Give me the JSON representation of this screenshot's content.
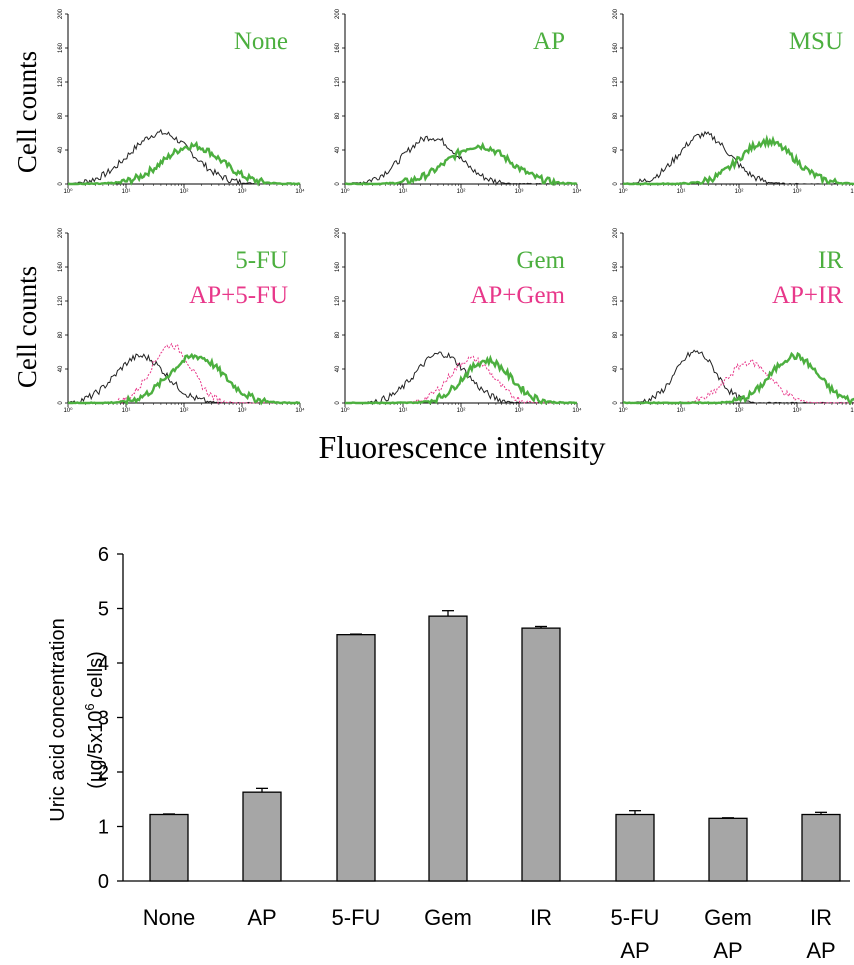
{
  "colors": {
    "control": "#222222",
    "treatment": "#4caf3f",
    "combo": "#e8388a",
    "bar_fill": "#a6a6a6",
    "bar_stroke": "#000000"
  },
  "histogram_panel": {
    "ylabel": "Cell counts",
    "xlabel": "Fluorescence intensity",
    "y_ticks": [
      "0",
      "40",
      "80",
      "120",
      "160",
      "200"
    ],
    "x_ticks": [
      "10⁰",
      "10¹",
      "10²",
      "10³",
      "10⁴"
    ],
    "x_scale": "log"
  },
  "chart_data": [
    {
      "type": "line",
      "x_scale": "log",
      "xlim": [
        1,
        10000
      ],
      "ylim": [
        0,
        200
      ],
      "panels": [
        {
          "label": "None",
          "combo_label": "",
          "series": [
            {
              "role": "control",
              "peak": 60,
              "center": 40,
              "spread": 0.85
            },
            {
              "role": "treatment",
              "peak": 45,
              "center": 140,
              "spread": 0.8
            }
          ]
        },
        {
          "label": "AP",
          "combo_label": "",
          "series": [
            {
              "role": "control",
              "peak": 55,
              "center": 30,
              "spread": 0.75
            },
            {
              "role": "treatment",
              "peak": 45,
              "center": 200,
              "spread": 0.85
            }
          ]
        },
        {
          "label": "MSU",
          "combo_label": "",
          "series": [
            {
              "role": "control",
              "peak": 58,
              "center": 25,
              "spread": 0.7
            },
            {
              "role": "treatment",
              "peak": 50,
              "center": 300,
              "spread": 0.75
            }
          ]
        },
        {
          "label": "5-FU",
          "combo_label": "AP+5-FU",
          "series": [
            {
              "role": "control",
              "peak": 55,
              "center": 18,
              "spread": 0.7
            },
            {
              "role": "treatment",
              "peak": 55,
              "center": 160,
              "spread": 0.75
            },
            {
              "role": "combo",
              "peak": 68,
              "center": 60,
              "spread": 0.55
            }
          ]
        },
        {
          "label": "Gem",
          "combo_label": "AP+Gem",
          "series": [
            {
              "role": "control",
              "peak": 58,
              "center": 45,
              "spread": 0.7
            },
            {
              "role": "treatment",
              "peak": 50,
              "center": 280,
              "spread": 0.65
            },
            {
              "role": "combo",
              "peak": 52,
              "center": 150,
              "spread": 0.6
            }
          ]
        },
        {
          "label": "IR",
          "combo_label": "AP+IR",
          "series": [
            {
              "role": "control",
              "peak": 60,
              "center": 18,
              "spread": 0.55
            },
            {
              "role": "treatment",
              "peak": 55,
              "center": 900,
              "spread": 0.65
            },
            {
              "role": "combo",
              "peak": 48,
              "center": 150,
              "spread": 0.6
            }
          ]
        }
      ]
    },
    {
      "type": "bar",
      "categories": [
        "None",
        "AP",
        "5-FU",
        "Gem",
        "IR",
        "5-FU AP",
        "Gem AP",
        "IR AP"
      ],
      "category_lines": [
        [
          "None"
        ],
        [
          "AP"
        ],
        [
          "5-FU"
        ],
        [
          "Gem"
        ],
        [
          "IR"
        ],
        [
          "5-FU",
          "AP"
        ],
        [
          "Gem",
          "AP"
        ],
        [
          "IR",
          "AP"
        ]
      ],
      "values": [
        1.22,
        1.63,
        4.52,
        4.86,
        4.64,
        1.22,
        1.15,
        1.22
      ],
      "errors": [
        0.01,
        0.07,
        0.01,
        0.1,
        0.03,
        0.07,
        0.01,
        0.04
      ],
      "ylim": [
        0,
        6
      ],
      "y_ticks": [
        0,
        1,
        2,
        3,
        4,
        5,
        6
      ],
      "ylabel_line1": "Uric acid concentration",
      "ylabel_line2_prefix": "(µg/5x10",
      "ylabel_line2_sup": "6",
      "ylabel_line2_suffix": " cells)"
    }
  ]
}
